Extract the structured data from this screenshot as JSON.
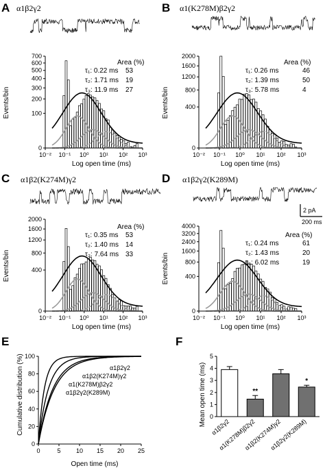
{
  "panels": [
    {
      "letter": "A",
      "title": "α1β2γ2",
      "ylabels": [
        "0",
        "100",
        "200",
        "300",
        "400",
        "500",
        "600",
        "700"
      ],
      "ylabel": "Events/bin",
      "xlabel": "Log open time (ms)",
      "xticks": [
        "10⁻²",
        "10⁻¹",
        "10⁰",
        "10¹",
        "10²",
        "10³"
      ],
      "area_header": "Area (%)",
      "taus": [
        {
          "label": "τ₁: 0.22 ms",
          "area": "53"
        },
        {
          "label": "τ₂: 1.71 ms",
          "area": "19"
        },
        {
          "label": "τ₃: 11.9 ms",
          "area": "27"
        }
      ]
    },
    {
      "letter": "B",
      "title": "α1(K278M)β2γ2",
      "ylabels": [
        "0",
        "400",
        "800",
        "1200",
        "1600",
        "2000"
      ],
      "ylabel": "Events/bin",
      "xlabel": "Log open time (ms)",
      "xticks": [
        "10⁻²",
        "10⁻¹",
        "10⁰",
        "10¹",
        "10²",
        "10³"
      ],
      "area_header": "Area (%)",
      "taus": [
        {
          "label": "τ₁: 0.26 ms",
          "area": "46"
        },
        {
          "label": "τ₂: 1.39 ms",
          "area": "50"
        },
        {
          "label": "τ₃: 5.78 ms",
          "area": "4"
        }
      ]
    },
    {
      "letter": "C",
      "title": "α1β2(K274M)γ2",
      "ylabels": [
        "0",
        "400",
        "800",
        "1200",
        "1600",
        "2000"
      ],
      "ylabel": "Events/bin",
      "xlabel": "Log open time (ms)",
      "xticks": [
        "10⁻²",
        "10⁻¹",
        "10⁰",
        "10¹",
        "10²",
        "10³"
      ],
      "area_header": "Area (%)",
      "taus": [
        {
          "label": "τ₁: 0.35 ms",
          "area": "53"
        },
        {
          "label": "τ₂: 1.40 ms",
          "area": "14"
        },
        {
          "label": "τ₃: 7.64 ms",
          "area": "33"
        }
      ]
    },
    {
      "letter": "D",
      "title": "α1β2γ2(K289M)",
      "ylabels": [
        "0",
        "400",
        "800",
        "1600",
        "2400",
        "3200",
        "4000"
      ],
      "ylabel": "Events/bin",
      "xlabel": "Log open time (ms)",
      "xticks": [
        "10⁻²",
        "10⁻¹",
        "10⁰",
        "10¹",
        "10²",
        "10³"
      ],
      "area_header": "Area (%)",
      "taus": [
        {
          "label": "τ₁: 0.24 ms",
          "area": "61"
        },
        {
          "label": "τ₂: 1.43 ms",
          "area": "20"
        },
        {
          "label": "τ₃: 6.02 ms",
          "area": "19"
        }
      ]
    }
  ],
  "scalebar": {
    "current": "2 pA",
    "time": "200 ms"
  },
  "panel_e": {
    "letter": "E",
    "ylabel": "Cumulative distribution (%)",
    "xlabel": "Open time (ms)",
    "yticks": [
      "0",
      "20",
      "40",
      "60",
      "80",
      "100"
    ],
    "xticks": [
      "0",
      "5",
      "10",
      "15",
      "20",
      "25"
    ],
    "curve_labels": [
      "α1β2γ2",
      "α1β2(K274M)γ2",
      "α1(K278M)β2γ2",
      "α1β2γ2(K289M)"
    ]
  },
  "panel_f": {
    "letter": "F",
    "ylabel": "Mean open time (ms)",
    "yticks": [
      "0",
      "1",
      "2",
      "3",
      "4",
      "5"
    ],
    "categories": [
      "α1β2γ2",
      "α1(K278M)β2γ2",
      "α1β2(K274M)γ2",
      "α1β2γ2(K289M)"
    ],
    "significance": [
      "",
      "**",
      "",
      "*"
    ]
  },
  "chart_data": [
    {
      "type": "bar",
      "subplot": "F",
      "categories": [
        "α1β2γ2",
        "α1(K278M)β2γ2",
        "α1β2(K274M)γ2",
        "α1β2γ2(K289M)"
      ],
      "values": [
        3.9,
        1.45,
        3.55,
        2.45
      ],
      "errors": [
        0.25,
        0.3,
        0.35,
        0.15
      ],
      "ylabel": "Mean open time (ms)",
      "ylim": [
        0,
        5
      ],
      "colors": [
        "#ffffff",
        "#707070",
        "#707070",
        "#707070"
      ]
    },
    {
      "type": "line",
      "subplot": "E",
      "xlabel": "Open time (ms)",
      "ylabel": "Cumulative distribution (%)",
      "xlim": [
        0,
        25
      ],
      "ylim": [
        0,
        100
      ],
      "series": [
        {
          "name": "α1β2γ2",
          "tau": 3.9
        },
        {
          "name": "α1β2(K274M)γ2",
          "tau": 3.55
        },
        {
          "name": "α1β2γ2(K289M)",
          "tau": 2.45
        },
        {
          "name": "α1(K278M)β2γ2",
          "tau": 1.45
        }
      ]
    }
  ]
}
